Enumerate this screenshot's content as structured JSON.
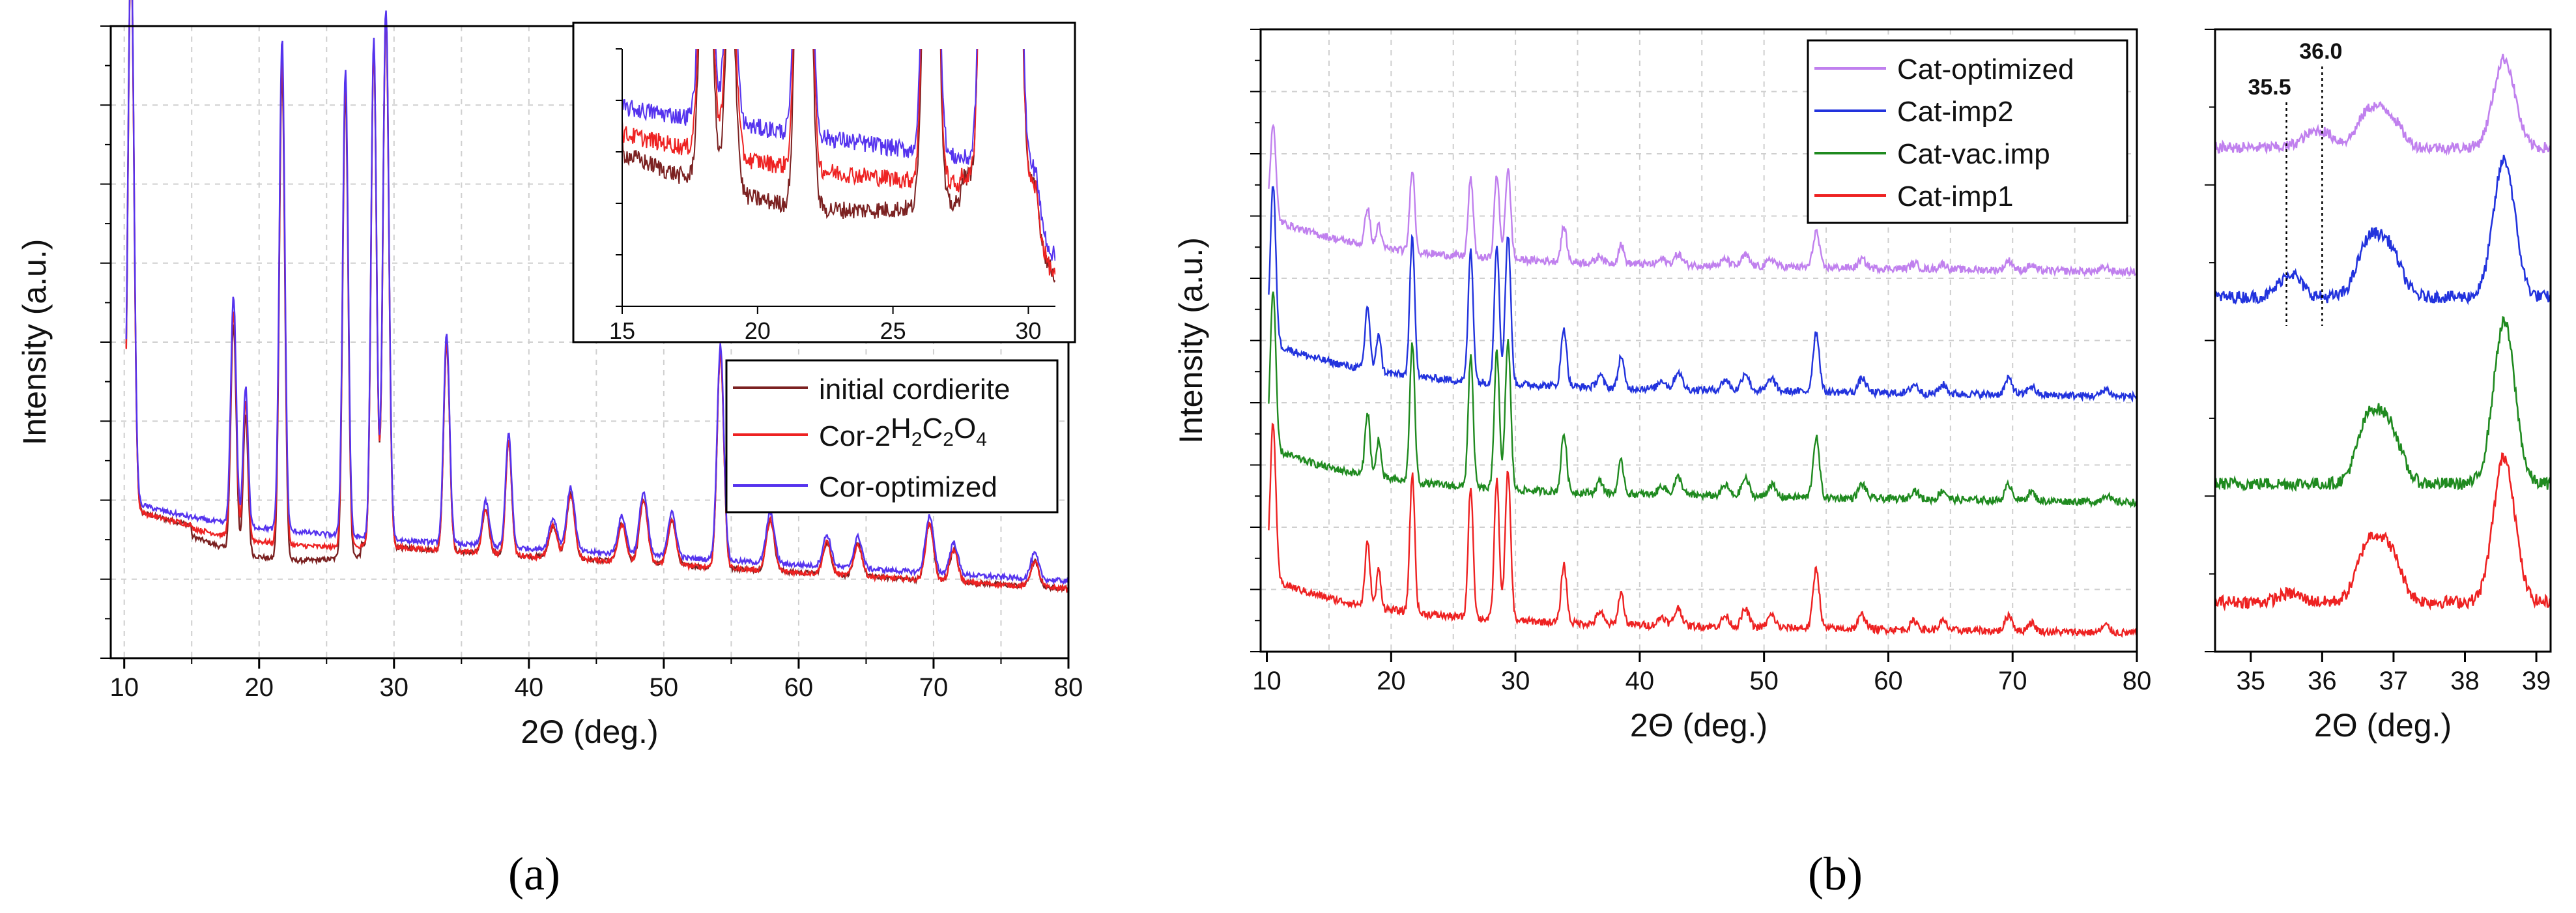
{
  "figure": {
    "panel_a_label": "(a)",
    "panel_b_label": "(b)"
  },
  "chart_data": [
    {
      "id": "a_main",
      "type": "line",
      "xlabel": "2Θ (deg.)",
      "ylabel": "Intensity (a.u.)",
      "xlim": [
        9,
        80
      ],
      "xticks": [
        10,
        20,
        30,
        40,
        50,
        60,
        70,
        80
      ],
      "grid": true,
      "legend_position": "right",
      "peaks": [
        {
          "x": 10.5,
          "h": 0.89,
          "w": 0.22
        },
        {
          "x": 18.1,
          "h": 0.36,
          "w": 0.2
        },
        {
          "x": 19.0,
          "h": 0.22,
          "w": 0.18
        },
        {
          "x": 21.7,
          "h": 0.78,
          "w": 0.2
        },
        {
          "x": 26.4,
          "h": 0.74,
          "w": 0.2
        },
        {
          "x": 28.5,
          "h": 0.79,
          "w": 0.2
        },
        {
          "x": 29.4,
          "h": 0.84,
          "w": 0.22
        },
        {
          "x": 33.9,
          "h": 0.33,
          "w": 0.22
        },
        {
          "x": 36.8,
          "h": 0.07,
          "w": 0.25
        },
        {
          "x": 38.5,
          "h": 0.18,
          "w": 0.22
        },
        {
          "x": 41.8,
          "h": 0.05,
          "w": 0.3
        },
        {
          "x": 43.1,
          "h": 0.1,
          "w": 0.3
        },
        {
          "x": 46.9,
          "h": 0.06,
          "w": 0.3
        },
        {
          "x": 48.5,
          "h": 0.1,
          "w": 0.3
        },
        {
          "x": 50.6,
          "h": 0.07,
          "w": 0.3
        },
        {
          "x": 54.2,
          "h": 0.34,
          "w": 0.25
        },
        {
          "x": 57.9,
          "h": 0.08,
          "w": 0.3
        },
        {
          "x": 62.1,
          "h": 0.05,
          "w": 0.3
        },
        {
          "x": 64.4,
          "h": 0.05,
          "w": 0.3
        },
        {
          "x": 69.7,
          "h": 0.09,
          "w": 0.3
        },
        {
          "x": 71.5,
          "h": 0.05,
          "w": 0.3
        },
        {
          "x": 77.5,
          "h": 0.04,
          "w": 0.3
        }
      ],
      "series": [
        {
          "name": "initial cordierite",
          "color": "#7b2121",
          "offset": 0.0,
          "dip": 0.035
        },
        {
          "name": "Cor-2H2C2O4",
          "color": "#ee2222",
          "offset": 0.0,
          "dip": 0.01
        },
        {
          "name": "Cor-optimized",
          "color": "#5533ee",
          "offset": 0.012,
          "dip": 0.0
        }
      ]
    },
    {
      "id": "a_inset",
      "type": "line",
      "xlim": [
        15,
        31
      ],
      "xticks": [
        15,
        20,
        25,
        30
      ],
      "grid": false
    },
    {
      "id": "b_main",
      "type": "line",
      "xlabel": "2Θ (deg.)",
      "ylabel": "Intensity (a.u.)",
      "xlim": [
        9.5,
        80
      ],
      "xticks": [
        10,
        20,
        30,
        40,
        50,
        60,
        70,
        80
      ],
      "grid": true,
      "legend_position": "top-right",
      "series": [
        {
          "name": "Cat-optimized",
          "color": "#c080ee",
          "baseline": 0.63,
          "scale": 0.45
        },
        {
          "name": "Cat-imp2",
          "color": "#2233dd",
          "baseline": 0.43,
          "scale": 0.75
        },
        {
          "name": "Cat-vac.imp",
          "color": "#1f8a1f",
          "baseline": 0.26,
          "scale": 0.75
        },
        {
          "name": "Cat-imp1",
          "color": "#ee2222",
          "baseline": 0.05,
          "scale": 0.75
        }
      ]
    },
    {
      "id": "b_zoom",
      "type": "line",
      "xlabel": "2Θ (deg.)",
      "xlim": [
        34.5,
        39.2
      ],
      "xticks": [
        35,
        36,
        37,
        38,
        39
      ],
      "annotations": [
        {
          "text": "35.5",
          "x": 35.5
        },
        {
          "text": "36.0",
          "x": 36.0
        }
      ]
    }
  ]
}
